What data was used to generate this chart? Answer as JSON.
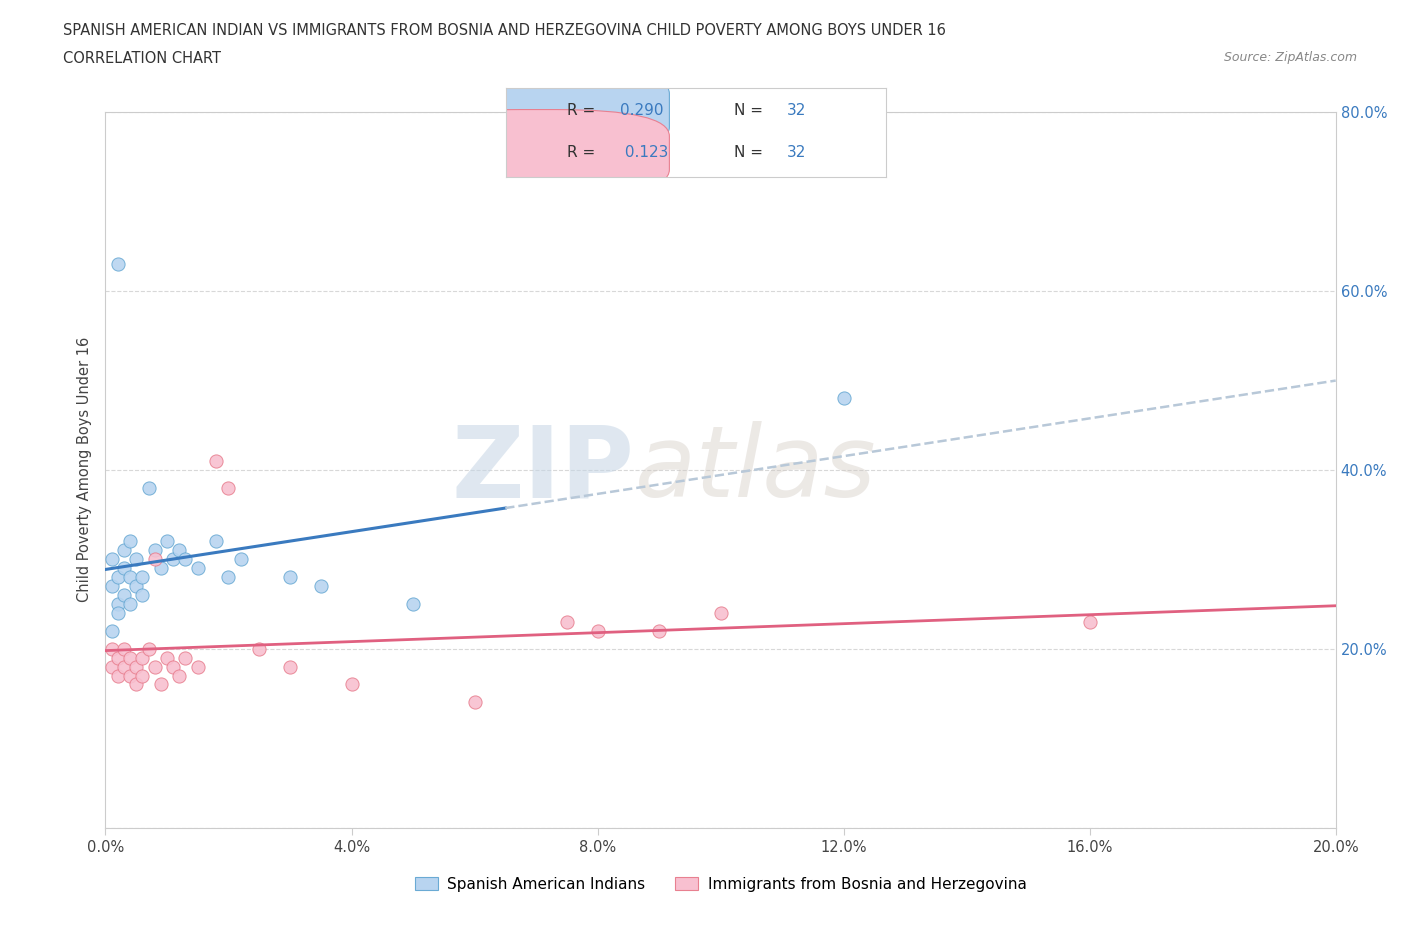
{
  "title_line1": "SPANISH AMERICAN INDIAN VS IMMIGRANTS FROM BOSNIA AND HERZEGOVINA CHILD POVERTY AMONG BOYS UNDER 16",
  "title_line2": "CORRELATION CHART",
  "source": "Source: ZipAtlas.com",
  "ylabel": "Child Poverty Among Boys Under 16",
  "watermark_zip": "ZIP",
  "watermark_atlas": "atlas",
  "legend_label1": "Spanish American Indians",
  "legend_label2": "Immigrants from Bosnia and Herzegovina",
  "R1": "0.290",
  "N1": "32",
  "R2": "0.123",
  "N2": "32",
  "color1": "#b8d4f0",
  "color1_edge": "#6aaad4",
  "color2": "#f8c0d0",
  "color2_edge": "#e88090",
  "line1_color": "#3a7abf",
  "line2_color": "#e06080",
  "dashed_color": "#b8c8d8",
  "xlim": [
    0.0,
    0.2
  ],
  "ylim": [
    0.0,
    0.8
  ],
  "xtick_vals": [
    0.0,
    0.04,
    0.08,
    0.12,
    0.16,
    0.2
  ],
  "ytick_vals": [
    0.0,
    0.2,
    0.4,
    0.6,
    0.8
  ],
  "right_ytick_vals": [
    0.2,
    0.4,
    0.6,
    0.8
  ],
  "blue_x": [
    0.001,
    0.001,
    0.002,
    0.002,
    0.002,
    0.003,
    0.003,
    0.003,
    0.004,
    0.004,
    0.004,
    0.005,
    0.005,
    0.006,
    0.006,
    0.007,
    0.008,
    0.009,
    0.01,
    0.011,
    0.012,
    0.013,
    0.015,
    0.018,
    0.02,
    0.022,
    0.03,
    0.035,
    0.05,
    0.12,
    0.001,
    0.002
  ],
  "blue_y": [
    0.27,
    0.3,
    0.25,
    0.28,
    0.63,
    0.26,
    0.29,
    0.31,
    0.25,
    0.28,
    0.32,
    0.27,
    0.3,
    0.26,
    0.28,
    0.38,
    0.31,
    0.29,
    0.32,
    0.3,
    0.31,
    0.3,
    0.29,
    0.32,
    0.28,
    0.3,
    0.28,
    0.27,
    0.25,
    0.48,
    0.22,
    0.24
  ],
  "pink_x": [
    0.001,
    0.001,
    0.002,
    0.002,
    0.003,
    0.003,
    0.004,
    0.004,
    0.005,
    0.005,
    0.006,
    0.006,
    0.007,
    0.008,
    0.009,
    0.01,
    0.011,
    0.012,
    0.013,
    0.015,
    0.018,
    0.02,
    0.025,
    0.03,
    0.04,
    0.06,
    0.075,
    0.08,
    0.09,
    0.1,
    0.16,
    0.008
  ],
  "pink_y": [
    0.18,
    0.2,
    0.17,
    0.19,
    0.18,
    0.2,
    0.17,
    0.19,
    0.18,
    0.16,
    0.19,
    0.17,
    0.2,
    0.18,
    0.16,
    0.19,
    0.18,
    0.17,
    0.19,
    0.18,
    0.41,
    0.38,
    0.2,
    0.18,
    0.16,
    0.14,
    0.23,
    0.22,
    0.22,
    0.24,
    0.23,
    0.3
  ],
  "background_color": "#ffffff",
  "grid_color": "#d8d8d8"
}
